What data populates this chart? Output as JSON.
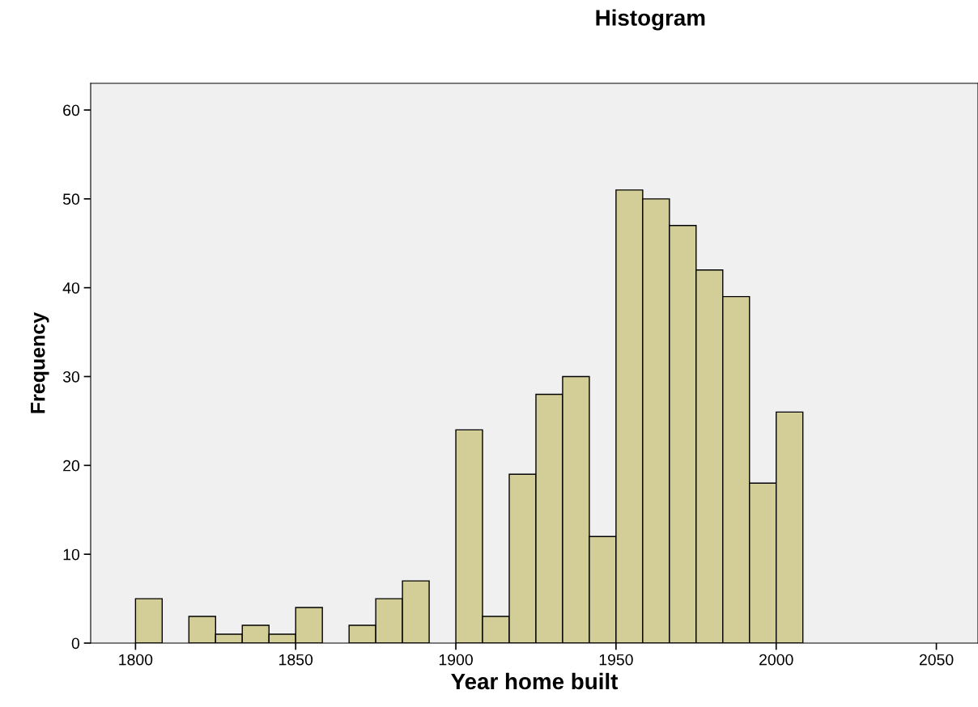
{
  "chart_data": {
    "type": "histogram",
    "title": "Histogram",
    "xlabel": "Year home built",
    "ylabel": "Frequency",
    "bins": [
      1800,
      1808.33,
      1816.67,
      1825,
      1833.33,
      1841.67,
      1850,
      1858.33,
      1866.67,
      1875,
      1883.33,
      1891.67,
      1900,
      1908.33,
      1916.67,
      1925,
      1933.33,
      1941.67,
      1950,
      1958.33,
      1966.67,
      1975,
      1983.33,
      1991.67,
      2000,
      2008.33
    ],
    "values": [
      5,
      0,
      3,
      1,
      2,
      1,
      4,
      0,
      2,
      5,
      7,
      0,
      24,
      3,
      19,
      28,
      30,
      12,
      51,
      50,
      47,
      42,
      39,
      18,
      26
    ],
    "color": "#d3ce97",
    "xlim": [
      1786,
      2063
    ],
    "xticks": [
      1800,
      1850,
      1900,
      1950,
      2000,
      2050
    ],
    "ylim": [
      0,
      63
    ],
    "yticks": [
      0,
      10,
      20,
      30,
      40,
      50,
      60
    ],
    "grid": false
  }
}
